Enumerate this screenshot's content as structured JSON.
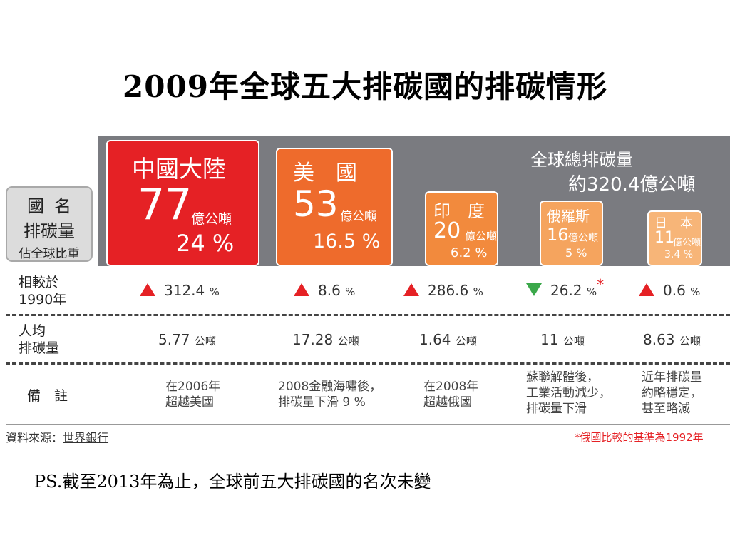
{
  "title": "2009年全球五大排碳國的排碳情形",
  "global_total": {
    "line1": "全球總排碳量",
    "line2": "約320.4億公噸"
  },
  "legend": {
    "line1": "國名",
    "line2": "排碳量",
    "line3": "佔全球比重"
  },
  "countries": [
    {
      "name": "中國大陸",
      "amount": "77",
      "unit": "億公噸",
      "share": "24 %",
      "color": "#e52125"
    },
    {
      "name": "美　國",
      "amount": "53",
      "unit": "億公噸",
      "share": "16.5 %",
      "color": "#ee6b2c"
    },
    {
      "name": "印　度",
      "amount": "20",
      "unit": "億公噸",
      "share": "6.2 %",
      "color": "#f28a3d"
    },
    {
      "name": "俄羅斯",
      "amount": "16",
      "unit": "億公噸",
      "share": "5 %",
      "color": "#f5a45e"
    },
    {
      "name": "日　本",
      "amount": "11",
      "unit": "億公噸",
      "share": "3.4 %",
      "color": "#f7b578"
    }
  ],
  "rows": {
    "compare": {
      "label_line1": "相較於",
      "label_line2": "1990年",
      "values": [
        "312.4",
        "8.6",
        "286.6",
        "26.2",
        "0.6"
      ],
      "unit": "%",
      "directions": [
        "up",
        "up",
        "up",
        "down",
        "up"
      ],
      "star": "*"
    },
    "per_capita": {
      "label_line1": "人均",
      "label_line2": "排碳量",
      "values": [
        "5.77",
        "17.28",
        "1.64",
        "11",
        "8.63"
      ],
      "unit": "公噸"
    },
    "notes": {
      "label": "備　註",
      "values": [
        [
          "在2006年",
          "超越美國"
        ],
        [
          "2008金融海嘯後，",
          "排碳量下滑 9 %"
        ],
        [
          "在2008年",
          "超越俄國"
        ],
        [
          "蘇聯解體後，",
          "工業活動減少，",
          "排碳量下滑"
        ],
        [
          "近年排碳量",
          "約略穩定，",
          "甚至略減"
        ]
      ]
    }
  },
  "source": {
    "prefix": "資料來源：",
    "name": "世界銀行"
  },
  "footnote": "*俄國比較的基準為1992年",
  "ps": "PS.截至2013年為止，全球前五大排碳國的名次未變"
}
